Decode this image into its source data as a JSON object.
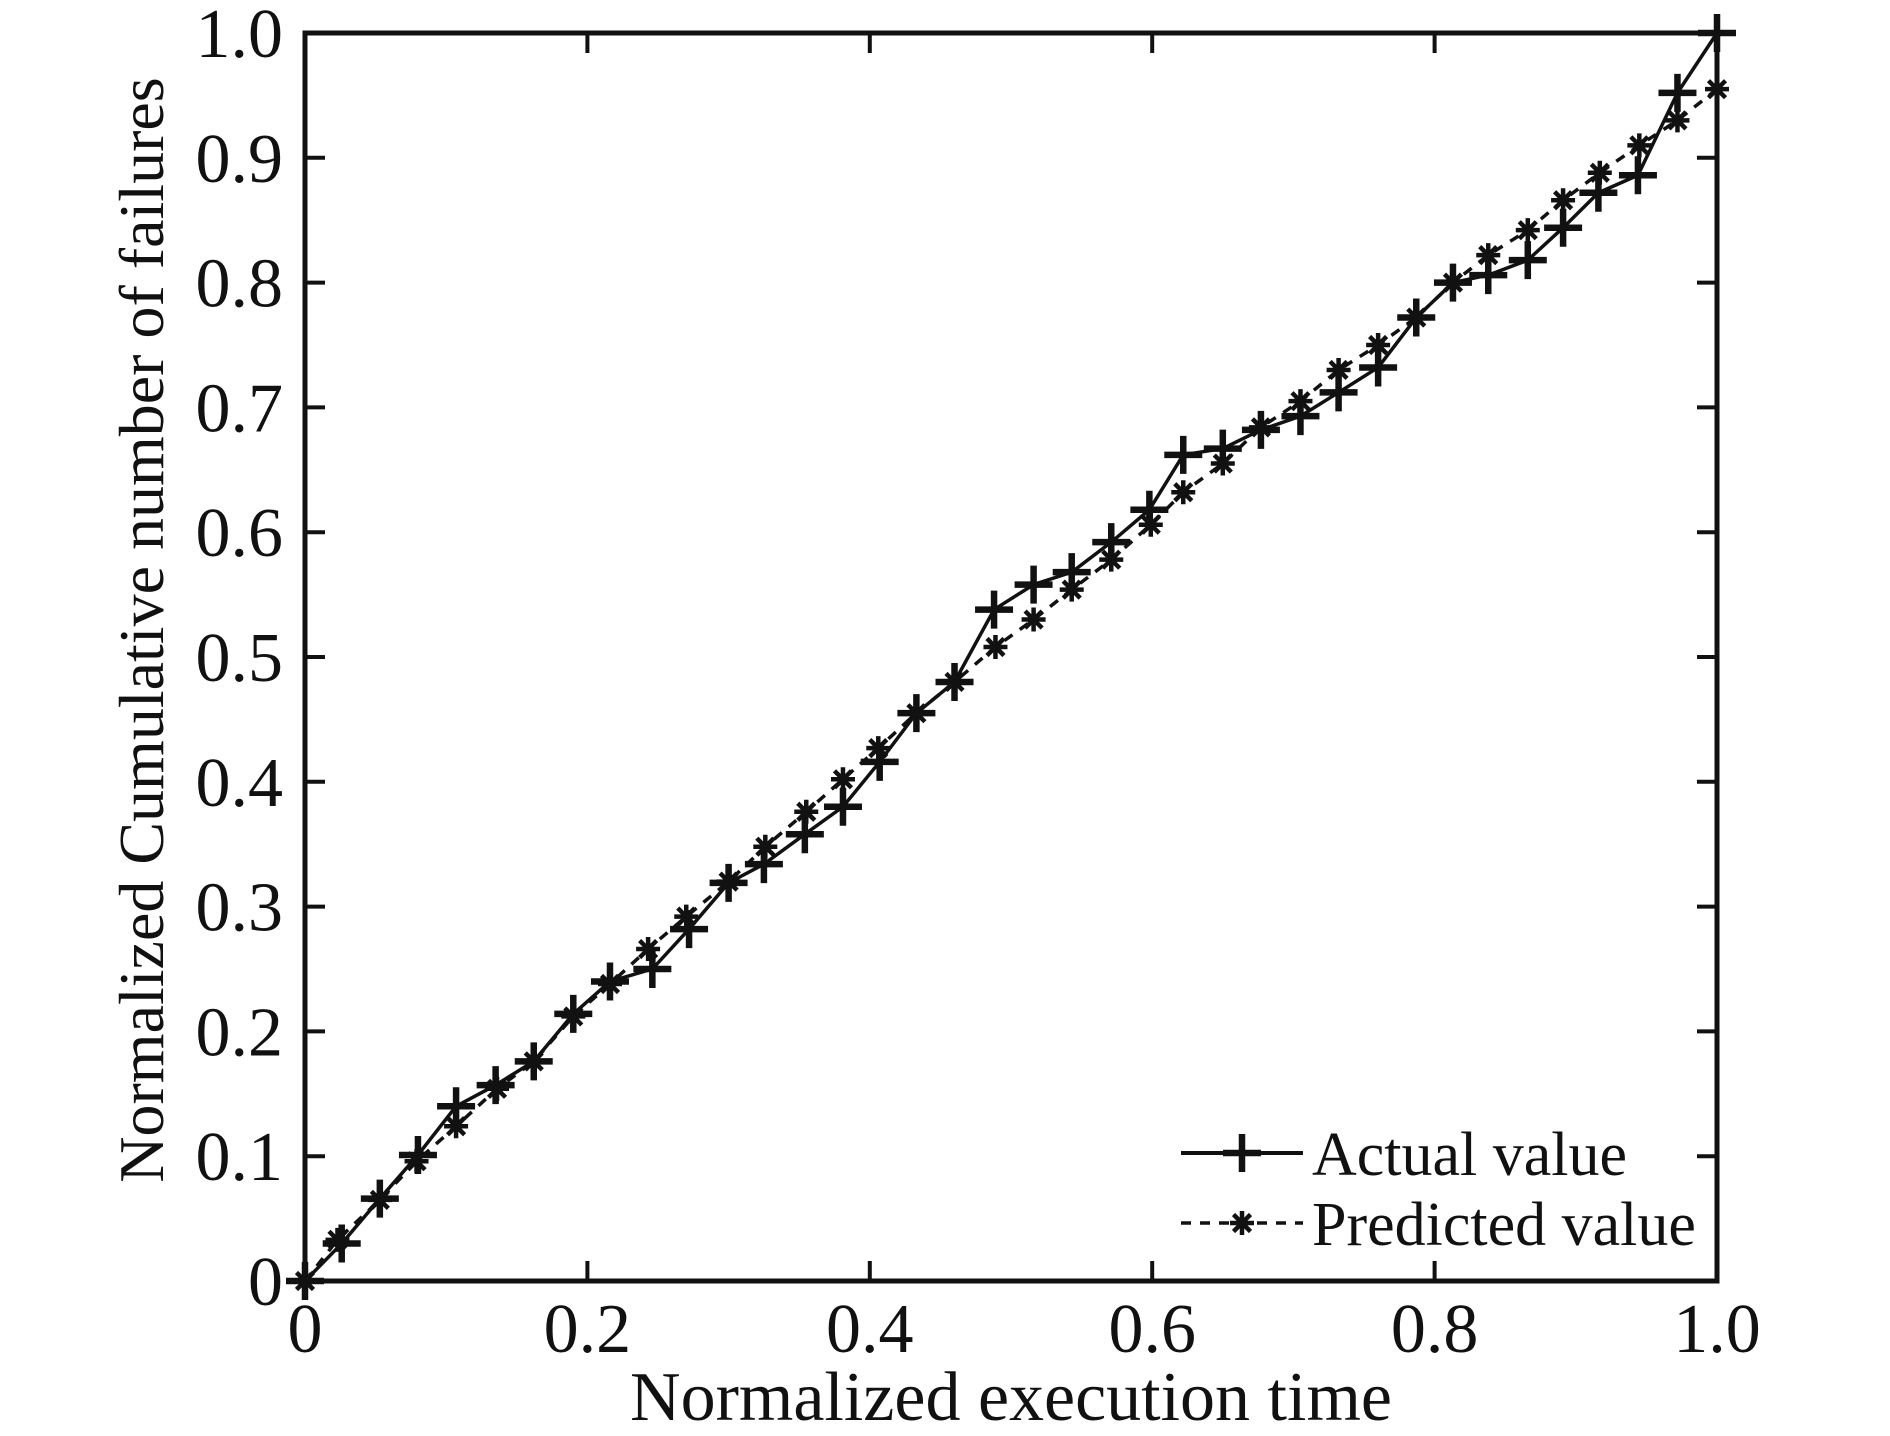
{
  "figure": {
    "background_color": "#ffffff",
    "ink_color": "#111111",
    "title": ""
  },
  "chart_data": {
    "type": "line",
    "title": "",
    "xlabel": "Normalized execution time",
    "ylabel": "Normalized Cumulative number of failures",
    "xlim": [
      0,
      1.0
    ],
    "ylim": [
      0,
      1.0
    ],
    "grid": false,
    "box": true,
    "ticks_direction": "in",
    "xticks": {
      "values": [
        0,
        0.2,
        0.4,
        0.6,
        0.8,
        1.0
      ],
      "labels": [
        "0",
        "0.2",
        "0.4",
        "0.6",
        "0.8",
        "1.0"
      ]
    },
    "yticks": {
      "values": [
        0,
        0.1,
        0.2,
        0.3,
        0.4,
        0.5,
        0.6,
        0.7,
        0.8,
        0.9,
        1.0
      ],
      "labels": [
        "0",
        "0.1",
        "0.2",
        "0.3",
        "0.4",
        "0.5",
        "0.6",
        "0.7",
        "0.8",
        "0.9",
        "1.0"
      ]
    },
    "legend": {
      "position": "lower-right-inside",
      "frame": false,
      "entries": [
        "Actual value",
        "Predicted value"
      ]
    },
    "series": [
      {
        "name": "Actual value",
        "marker": "plus",
        "line_style": "solid",
        "color": "#111111",
        "points": [
          [
            0.0,
            0.0
          ],
          [
            0.026,
            0.03
          ],
          [
            0.053,
            0.066
          ],
          [
            0.08,
            0.101
          ],
          [
            0.107,
            0.14
          ],
          [
            0.135,
            0.157
          ],
          [
            0.162,
            0.176
          ],
          [
            0.19,
            0.214
          ],
          [
            0.216,
            0.24
          ],
          [
            0.246,
            0.25
          ],
          [
            0.272,
            0.282
          ],
          [
            0.3,
            0.319
          ],
          [
            0.325,
            0.334
          ],
          [
            0.354,
            0.358
          ],
          [
            0.381,
            0.38
          ],
          [
            0.407,
            0.416
          ],
          [
            0.433,
            0.455
          ],
          [
            0.46,
            0.48
          ],
          [
            0.488,
            0.538
          ],
          [
            0.516,
            0.558
          ],
          [
            0.543,
            0.568
          ],
          [
            0.571,
            0.592
          ],
          [
            0.598,
            0.618
          ],
          [
            0.622,
            0.662
          ],
          [
            0.65,
            0.667
          ],
          [
            0.677,
            0.682
          ],
          [
            0.705,
            0.693
          ],
          [
            0.732,
            0.712
          ],
          [
            0.76,
            0.732
          ],
          [
            0.787,
            0.772
          ],
          [
            0.813,
            0.8
          ],
          [
            0.838,
            0.806
          ],
          [
            0.866,
            0.818
          ],
          [
            0.891,
            0.844
          ],
          [
            0.916,
            0.872
          ],
          [
            0.944,
            0.886
          ],
          [
            0.972,
            0.952
          ],
          [
            1.0,
            1.0
          ]
        ]
      },
      {
        "name": "Predicted value",
        "marker": "asterisk",
        "line_style": "dashed",
        "color": "#111111",
        "points": [
          [
            0.0,
            0.0
          ],
          [
            0.023,
            0.033
          ],
          [
            0.053,
            0.065
          ],
          [
            0.079,
            0.096
          ],
          [
            0.107,
            0.124
          ],
          [
            0.136,
            0.154
          ],
          [
            0.162,
            0.176
          ],
          [
            0.19,
            0.212
          ],
          [
            0.216,
            0.238
          ],
          [
            0.243,
            0.266
          ],
          [
            0.27,
            0.292
          ],
          [
            0.3,
            0.32
          ],
          [
            0.326,
            0.348
          ],
          [
            0.355,
            0.376
          ],
          [
            0.381,
            0.402
          ],
          [
            0.406,
            0.427
          ],
          [
            0.433,
            0.455
          ],
          [
            0.46,
            0.48
          ],
          [
            0.489,
            0.508
          ],
          [
            0.516,
            0.53
          ],
          [
            0.543,
            0.554
          ],
          [
            0.571,
            0.578
          ],
          [
            0.599,
            0.606
          ],
          [
            0.622,
            0.632
          ],
          [
            0.65,
            0.655
          ],
          [
            0.677,
            0.684
          ],
          [
            0.705,
            0.705
          ],
          [
            0.732,
            0.73
          ],
          [
            0.76,
            0.75
          ],
          [
            0.787,
            0.772
          ],
          [
            0.813,
            0.8
          ],
          [
            0.838,
            0.822
          ],
          [
            0.866,
            0.842
          ],
          [
            0.891,
            0.866
          ],
          [
            0.917,
            0.888
          ],
          [
            0.945,
            0.91
          ],
          [
            0.972,
            0.93
          ],
          [
            1.0,
            0.955
          ]
        ]
      }
    ]
  }
}
